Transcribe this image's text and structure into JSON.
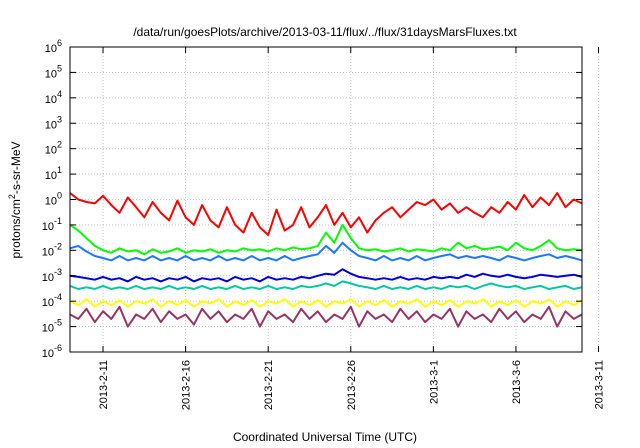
{
  "chart_data": {
    "type": "line",
    "title": "/data/run/goesPlots/archive/2013-03-11/flux/../flux/31daysMarsFluxes.txt",
    "xlabel": "Coordinated Universal Time (UTC)",
    "ylabel_base": "protons/cm",
    "ylabel_sup": "2",
    "ylabel_tail": "-s-sr-MeV",
    "yscale": "log",
    "ylim_exp": [
      -6,
      6
    ],
    "ytick_exponents": [
      -6,
      -5,
      -4,
      -3,
      -2,
      -1,
      0,
      1,
      2,
      3,
      4,
      5,
      6
    ],
    "ytick_base": "10",
    "xlim_days": [
      0,
      31
    ],
    "xtick_days": [
      2,
      7,
      12,
      17,
      22,
      27,
      32
    ],
    "xtick_labels": [
      "2013-2-11",
      "2013-2-16",
      "2013-2-21",
      "2013-2-26",
      "2013-3-1",
      "2013-3-6",
      "2013-3-11"
    ],
    "grid": true,
    "series": [
      {
        "color": "#ff0000",
        "x": [
          0,
          0.5,
          1,
          1.5,
          2,
          2.5,
          3,
          3.5,
          4,
          4.5,
          5,
          5.5,
          6,
          6.5,
          7,
          7.5,
          8,
          8.5,
          9,
          9.5,
          10,
          10.5,
          11,
          11.5,
          12,
          12.5,
          13,
          13.5,
          14,
          14.5,
          15,
          15.5,
          16,
          16.5,
          17,
          17.5,
          18,
          18.5,
          19,
          19.5,
          20,
          20.5,
          21,
          21.5,
          22,
          22.5,
          23,
          23.5,
          24,
          24.5,
          25,
          25.5,
          26,
          26.5,
          27,
          27.5,
          28,
          28.5,
          29,
          29.5,
          30,
          30.5,
          31
        ],
        "y": [
          1.8,
          1.0,
          0.8,
          0.7,
          1.4,
          0.6,
          0.3,
          1.2,
          0.5,
          0.2,
          0.8,
          0.3,
          0.15,
          0.9,
          0.2,
          0.1,
          0.6,
          0.15,
          0.08,
          0.5,
          0.1,
          0.05,
          0.3,
          0.08,
          0.04,
          0.4,
          0.06,
          0.1,
          0.5,
          0.08,
          0.2,
          0.6,
          0.1,
          0.3,
          0.08,
          0.2,
          0.05,
          0.15,
          0.3,
          0.5,
          0.2,
          0.4,
          0.8,
          0.6,
          1.0,
          0.4,
          0.7,
          0.3,
          0.5,
          0.3,
          0.2,
          0.5,
          0.3,
          0.8,
          0.4,
          1.5,
          0.5,
          1.2,
          0.6,
          1.8,
          0.5,
          1.0,
          0.7
        ]
      },
      {
        "color": "#00ff00",
        "x": [
          0,
          0.5,
          1,
          1.5,
          2,
          2.5,
          3,
          3.5,
          4,
          4.5,
          5,
          5.5,
          6,
          6.5,
          7,
          7.5,
          8,
          8.5,
          9,
          9.5,
          10,
          10.5,
          11,
          11.5,
          12,
          12.5,
          13,
          13.5,
          14,
          14.5,
          15,
          15.5,
          16,
          16.5,
          17,
          17.5,
          18,
          18.5,
          19,
          19.5,
          20,
          20.5,
          21,
          21.5,
          22,
          22.5,
          23,
          23.5,
          24,
          24.5,
          25,
          25.5,
          26,
          26.5,
          27,
          27.5,
          28,
          28.5,
          29,
          29.5,
          30,
          30.5,
          31
        ],
        "y": [
          0.1,
          0.06,
          0.03,
          0.015,
          0.01,
          0.008,
          0.012,
          0.009,
          0.01,
          0.007,
          0.011,
          0.008,
          0.009,
          0.012,
          0.008,
          0.01,
          0.009,
          0.011,
          0.008,
          0.01,
          0.009,
          0.012,
          0.01,
          0.011,
          0.009,
          0.012,
          0.01,
          0.013,
          0.011,
          0.012,
          0.015,
          0.05,
          0.02,
          0.1,
          0.03,
          0.012,
          0.01,
          0.011,
          0.009,
          0.01,
          0.012,
          0.009,
          0.011,
          0.01,
          0.009,
          0.012,
          0.01,
          0.02,
          0.012,
          0.015,
          0.011,
          0.012,
          0.014,
          0.01,
          0.02,
          0.012,
          0.01,
          0.015,
          0.025,
          0.012,
          0.01,
          0.011,
          0.01
        ]
      },
      {
        "color": "#1e78ff",
        "x": [
          0,
          0.5,
          1,
          1.5,
          2,
          2.5,
          3,
          3.5,
          4,
          4.5,
          5,
          5.5,
          6,
          6.5,
          7,
          7.5,
          8,
          8.5,
          9,
          9.5,
          10,
          10.5,
          11,
          11.5,
          12,
          12.5,
          13,
          13.5,
          14,
          14.5,
          15,
          15.5,
          16,
          16.5,
          17,
          17.5,
          18,
          18.5,
          19,
          19.5,
          20,
          20.5,
          21,
          21.5,
          22,
          22.5,
          23,
          23.5,
          24,
          24.5,
          25,
          25.5,
          26,
          26.5,
          27,
          27.5,
          28,
          28.5,
          29,
          29.5,
          30,
          30.5,
          31
        ],
        "y": [
          0.012,
          0.015,
          0.009,
          0.006,
          0.005,
          0.004,
          0.006,
          0.004,
          0.005,
          0.004,
          0.006,
          0.004,
          0.005,
          0.004,
          0.006,
          0.004,
          0.005,
          0.004,
          0.006,
          0.004,
          0.005,
          0.004,
          0.006,
          0.004,
          0.005,
          0.004,
          0.006,
          0.004,
          0.005,
          0.006,
          0.007,
          0.015,
          0.008,
          0.02,
          0.01,
          0.006,
          0.005,
          0.004,
          0.006,
          0.004,
          0.005,
          0.004,
          0.006,
          0.004,
          0.005,
          0.006,
          0.007,
          0.005,
          0.006,
          0.005,
          0.006,
          0.005,
          0.004,
          0.006,
          0.005,
          0.004,
          0.005,
          0.006,
          0.007,
          0.005,
          0.006,
          0.005,
          0.004
        ]
      },
      {
        "color": "#0000dd",
        "x": [
          0,
          0.5,
          1,
          1.5,
          2,
          2.5,
          3,
          3.5,
          4,
          4.5,
          5,
          5.5,
          6,
          6.5,
          7,
          7.5,
          8,
          8.5,
          9,
          9.5,
          10,
          10.5,
          11,
          11.5,
          12,
          12.5,
          13,
          13.5,
          14,
          14.5,
          15,
          15.5,
          16,
          16.5,
          17,
          17.5,
          18,
          18.5,
          19,
          19.5,
          20,
          20.5,
          21,
          21.5,
          22,
          22.5,
          23,
          23.5,
          24,
          24.5,
          25,
          25.5,
          26,
          26.5,
          27,
          27.5,
          28,
          28.5,
          29,
          29.5,
          30,
          30.5,
          31
        ],
        "y": [
          0.001,
          0.0009,
          0.0008,
          0.0007,
          0.0009,
          0.0007,
          0.0008,
          0.0006,
          0.0009,
          0.0007,
          0.0008,
          0.0006,
          0.0008,
          0.0007,
          0.0009,
          0.0006,
          0.0008,
          0.0007,
          0.0008,
          0.0006,
          0.0009,
          0.0007,
          0.0008,
          0.0006,
          0.0009,
          0.0007,
          0.0008,
          0.0007,
          0.0009,
          0.0008,
          0.001,
          0.0012,
          0.0011,
          0.0018,
          0.0012,
          0.0009,
          0.0008,
          0.0007,
          0.0008,
          0.0007,
          0.0009,
          0.0007,
          0.0008,
          0.0007,
          0.0009,
          0.0008,
          0.0009,
          0.0008,
          0.0011,
          0.0009,
          0.0012,
          0.001,
          0.0009,
          0.0011,
          0.0009,
          0.0008,
          0.0009,
          0.0011,
          0.001,
          0.0009,
          0.001,
          0.0011,
          0.0009
        ]
      },
      {
        "color": "#00c8a0",
        "x": [
          0,
          0.5,
          1,
          1.5,
          2,
          2.5,
          3,
          3.5,
          4,
          4.5,
          5,
          5.5,
          6,
          6.5,
          7,
          7.5,
          8,
          8.5,
          9,
          9.5,
          10,
          10.5,
          11,
          11.5,
          12,
          12.5,
          13,
          13.5,
          14,
          14.5,
          15,
          15.5,
          16,
          16.5,
          17,
          17.5,
          18,
          18.5,
          19,
          19.5,
          20,
          20.5,
          21,
          21.5,
          22,
          22.5,
          23,
          23.5,
          24,
          24.5,
          25,
          25.5,
          26,
          26.5,
          27,
          27.5,
          28,
          28.5,
          29,
          29.5,
          30,
          30.5,
          31
        ],
        "y": [
          0.0004,
          0.0003,
          0.00035,
          0.0003,
          0.0004,
          0.0003,
          0.00035,
          0.0003,
          0.0004,
          0.0003,
          0.00035,
          0.0003,
          0.0004,
          0.0003,
          0.00035,
          0.0003,
          0.0004,
          0.0003,
          0.00035,
          0.0003,
          0.0004,
          0.0003,
          0.00035,
          0.0003,
          0.0004,
          0.0003,
          0.00035,
          0.0003,
          0.0004,
          0.00035,
          0.0004,
          0.0005,
          0.0004,
          0.0006,
          0.0005,
          0.0004,
          0.00035,
          0.0003,
          0.0004,
          0.0003,
          0.00035,
          0.0003,
          0.0004,
          0.0003,
          0.00035,
          0.0003,
          0.0004,
          0.00035,
          0.0004,
          0.0003,
          0.0004,
          0.0005,
          0.0004,
          0.00035,
          0.0004,
          0.0003,
          0.00035,
          0.0004,
          0.0003,
          0.00035,
          0.0004,
          0.0003,
          0.00035
        ]
      },
      {
        "color": "#ffff00",
        "x": [
          0,
          0.5,
          1,
          1.5,
          2,
          2.5,
          3,
          3.5,
          4,
          4.5,
          5,
          5.5,
          6,
          6.5,
          7,
          7.5,
          8,
          8.5,
          9,
          9.5,
          10,
          10.5,
          11,
          11.5,
          12,
          12.5,
          13,
          13.5,
          14,
          14.5,
          15,
          15.5,
          16,
          16.5,
          17,
          17.5,
          18,
          18.5,
          19,
          19.5,
          20,
          20.5,
          21,
          21.5,
          22,
          22.5,
          23,
          23.5,
          24,
          24.5,
          25,
          25.5,
          26,
          26.5,
          27,
          27.5,
          28,
          28.5,
          29,
          29.5,
          30,
          30.5,
          31
        ],
        "y": [
          0.0001,
          7e-05,
          0.00012,
          6e-05,
          0.0001,
          7e-05,
          0.00011,
          6e-05,
          0.0001,
          8e-05,
          0.00012,
          6e-05,
          0.0001,
          7e-05,
          0.00011,
          6e-05,
          0.0001,
          8e-05,
          0.00012,
          6e-05,
          0.0001,
          7e-05,
          0.00011,
          6e-05,
          0.0001,
          8e-05,
          0.00012,
          6e-05,
          0.0001,
          7e-05,
          0.00011,
          6e-05,
          0.0001,
          8e-05,
          0.00012,
          6e-05,
          0.0001,
          7e-05,
          0.00011,
          6e-05,
          0.0001,
          8e-05,
          0.00012,
          6e-05,
          0.0001,
          7e-05,
          0.00011,
          6e-05,
          0.0001,
          8e-05,
          0.00012,
          6e-05,
          0.0001,
          7e-05,
          0.00011,
          6e-05,
          0.0001,
          8e-05,
          0.00012,
          6e-05,
          0.0001,
          7e-05,
          0.00011
        ]
      },
      {
        "color": "#993366",
        "x": [
          0,
          0.5,
          1,
          1.5,
          2,
          2.5,
          3,
          3.5,
          4,
          4.5,
          5,
          5.5,
          6,
          6.5,
          7,
          7.5,
          8,
          8.5,
          9,
          9.5,
          10,
          10.5,
          11,
          11.5,
          12,
          12.5,
          13,
          13.5,
          14,
          14.5,
          15,
          15.5,
          16,
          16.5,
          17,
          17.5,
          18,
          18.5,
          19,
          19.5,
          20,
          20.5,
          21,
          21.5,
          22,
          22.5,
          23,
          23.5,
          24,
          24.5,
          25,
          25.5,
          26,
          26.5,
          27,
          27.5,
          28,
          28.5,
          29,
          29.5,
          30,
          30.5,
          31
        ],
        "y": [
          3e-05,
          2e-05,
          5e-05,
          1.5e-05,
          4e-05,
          2e-05,
          6e-05,
          1e-05,
          3e-05,
          2e-05,
          5e-05,
          1.5e-05,
          4e-05,
          2e-05,
          3e-05,
          1.2e-05,
          5e-05,
          2e-05,
          4e-05,
          1.5e-05,
          3e-05,
          2e-05,
          5e-05,
          1e-05,
          4e-05,
          2e-05,
          3e-05,
          1.5e-05,
          5e-05,
          2e-05,
          4e-05,
          1.5e-05,
          3e-05,
          2e-05,
          6e-05,
          1e-05,
          4e-05,
          2e-05,
          3e-05,
          1.5e-05,
          5e-05,
          2e-05,
          4e-05,
          1.5e-05,
          3e-05,
          2e-05,
          5e-05,
          1e-05,
          4e-05,
          2e-05,
          3e-05,
          1.5e-05,
          5e-05,
          2e-05,
          4e-05,
          1.5e-05,
          3e-05,
          2e-05,
          6e-05,
          1e-05,
          4e-05,
          2e-05,
          3e-05
        ]
      }
    ]
  }
}
